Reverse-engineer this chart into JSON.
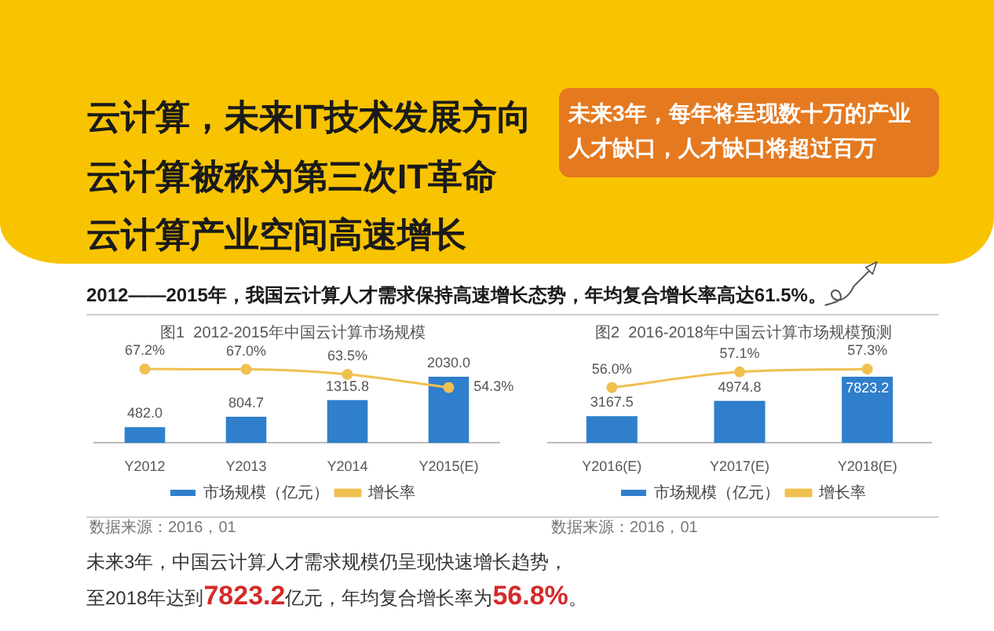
{
  "chart_data": [
    {
      "type": "other",
      "annotations": [
        "云计算，未来IT技术发展方向",
        "云计算被称为第三次IT革命",
        "云计算产业空间高速增长",
        "未来3年，每年将呈现数十万的产业人才缺口，人才缺口将超过百万",
        "2012——2015年，我国云计算人才需求保持高速增长态势，年均复合增长率高达61.5%。"
      ]
    },
    {
      "type": "bar",
      "title": "图1  2012-2015年中国云计算市场规模",
      "categories": [
        "Y2012",
        "Y2013",
        "Y2014",
        "Y2015(E)"
      ],
      "series": [
        {
          "name": "市场规模（亿元）",
          "type": "bar",
          "color": "#2f7fcc",
          "values": [
            482.0,
            804.7,
            1315.8,
            2030.0
          ],
          "value_labels": [
            "482.0",
            "804.7",
            "1315.8",
            "2030.0"
          ]
        },
        {
          "name": "增长率",
          "type": "line",
          "axis": "y2",
          "color": "#f0c050",
          "values": [
            67.2,
            67.0,
            63.5,
            54.3
          ],
          "value_labels": [
            "67.2%",
            "67.0%",
            "63.5%",
            "54.3%"
          ]
        }
      ],
      "marker": "circle",
      "legend": "bottom",
      "tick_labels": "x",
      "annotations": [
        "数据来源：2016，01"
      ]
    },
    {
      "type": "bar",
      "title": "图2  2016-2018年中国云计算市场规模预测",
      "categories": [
        "Y2016(E)",
        "Y2017(E)",
        "Y2018(E)"
      ],
      "series": [
        {
          "name": "市场规模（亿元）",
          "type": "bar",
          "color": "#2f7fcc",
          "values": [
            3167.5,
            4974.8,
            7823.2
          ],
          "value_labels": [
            "3167.5",
            "4974.8",
            "7823.2"
          ]
        },
        {
          "name": "增长率",
          "type": "line",
          "axis": "y2",
          "color": "#f0c050",
          "values": [
            56.0,
            57.1,
            57.3
          ],
          "value_labels": [
            "56.0%",
            "57.1%",
            "57.3%"
          ]
        }
      ],
      "marker": "circle",
      "legend": "bottom",
      "tick_labels": "x",
      "annotations": [
        "数据来源：2016，01"
      ]
    },
    {
      "type": "other",
      "annotations": [
        "未来3年，中国云计算人才需求规模仍呈现快速增长趋势，至2018年达到7823.2亿元，年均复合增长率为56.8%。"
      ]
    }
  ]
}
